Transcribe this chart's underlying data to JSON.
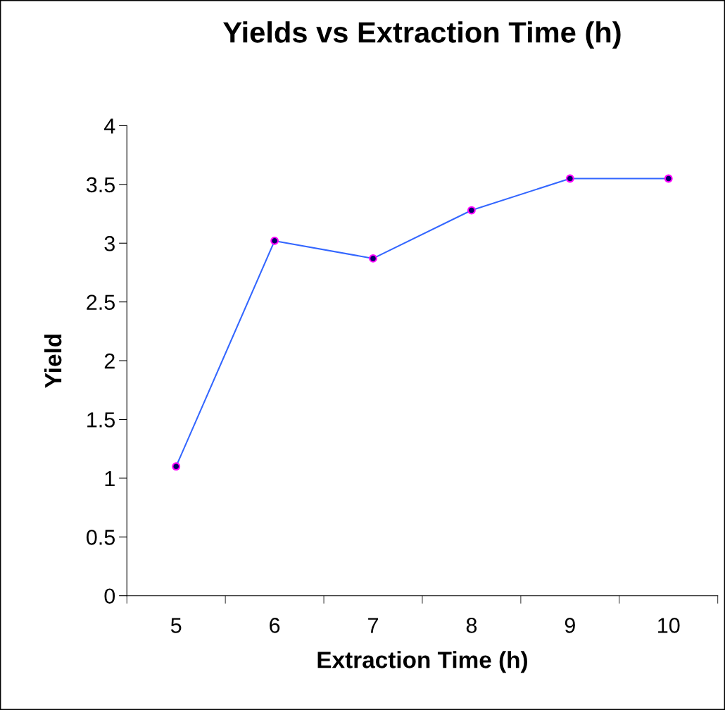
{
  "chart_data": {
    "type": "line",
    "title": "Yields vs Extraction Time (h)",
    "xlabel": "Extraction Time (h)",
    "ylabel": "Yield",
    "categories": [
      "5",
      "6",
      "7",
      "8",
      "9",
      "10"
    ],
    "series": [
      {
        "color": "#3366ff",
        "values": [
          1.1,
          3.02,
          2.87,
          3.28,
          3.55,
          3.55
        ]
      }
    ],
    "ylim": [
      0,
      4
    ],
    "yticks": [
      0,
      0.5,
      1,
      1.5,
      2,
      2.5,
      3,
      3.5,
      4
    ],
    "grid": false,
    "legend": false,
    "marker": "circle",
    "line_style": "solid"
  }
}
